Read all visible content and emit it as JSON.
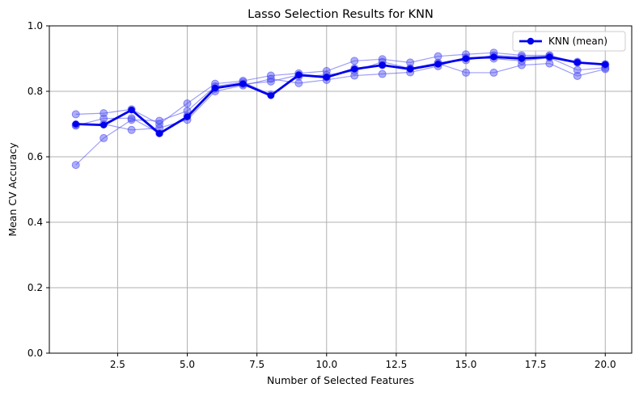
{
  "chart_data": {
    "type": "line",
    "title": "Lasso Selection Results for KNN",
    "xlabel": "Number of Selected Features",
    "ylabel": "Mean CV Accuracy",
    "xlim": [
      0.05,
      20.95
    ],
    "ylim": [
      0.0,
      1.0
    ],
    "x_ticks": [
      2.5,
      5.0,
      7.5,
      10.0,
      12.5,
      15.0,
      17.5,
      20.0
    ],
    "x_tick_labels": [
      "2.5",
      "5.0",
      "7.5",
      "10.0",
      "12.5",
      "15.0",
      "17.5",
      "20.0"
    ],
    "y_ticks": [
      0.0,
      0.2,
      0.4,
      0.6,
      0.8,
      1.0
    ],
    "y_tick_labels": [
      "0.0",
      "0.2",
      "0.4",
      "0.6",
      "0.8",
      "1.0"
    ],
    "grid": true,
    "legend_position": "top-right",
    "x": [
      1,
      2,
      3,
      4,
      5,
      6,
      7,
      8,
      9,
      10,
      11,
      12,
      13,
      14,
      15,
      16,
      17,
      18,
      19,
      20
    ],
    "fold_runs": [
      {
        "values": [
          0.73,
          0.733,
          0.745,
          0.7,
          0.763,
          0.823,
          0.832,
          0.848,
          0.855,
          0.862,
          0.893,
          0.898,
          0.888,
          0.907,
          0.913,
          0.918,
          0.91,
          0.91,
          0.888,
          0.883
        ]
      },
      {
        "values": [
          0.575,
          0.657,
          0.713,
          0.71,
          0.74,
          0.815,
          0.828,
          0.79,
          0.845,
          0.85,
          0.862,
          0.89,
          0.87,
          0.885,
          0.857,
          0.857,
          0.88,
          0.885,
          0.847,
          0.868
        ]
      },
      {
        "values": [
          0.698,
          0.7,
          0.682,
          0.688,
          0.713,
          0.8,
          0.818,
          0.838,
          0.825,
          0.835,
          0.848,
          0.853,
          0.858,
          0.877,
          0.903,
          0.9,
          0.893,
          0.903,
          0.865,
          0.872
        ]
      },
      {
        "values": [
          0.695,
          0.717,
          0.718,
          0.672,
          0.725,
          0.808,
          0.822,
          0.83,
          0.85,
          0.843,
          0.87,
          0.88,
          0.87,
          0.887,
          0.895,
          0.91,
          0.905,
          0.907,
          0.89,
          0.88
        ]
      }
    ],
    "series": [
      {
        "name": "KNN (mean)",
        "values": [
          0.7,
          0.697,
          0.743,
          0.671,
          0.722,
          0.81,
          0.823,
          0.787,
          0.85,
          0.843,
          0.868,
          0.88,
          0.868,
          0.883,
          0.9,
          0.905,
          0.9,
          0.905,
          0.888,
          0.882
        ]
      }
    ],
    "colors": {
      "line": "#0000ee",
      "fold": "#4c4cf2",
      "grid": "#b0b0b0",
      "axis": "#000000"
    }
  }
}
